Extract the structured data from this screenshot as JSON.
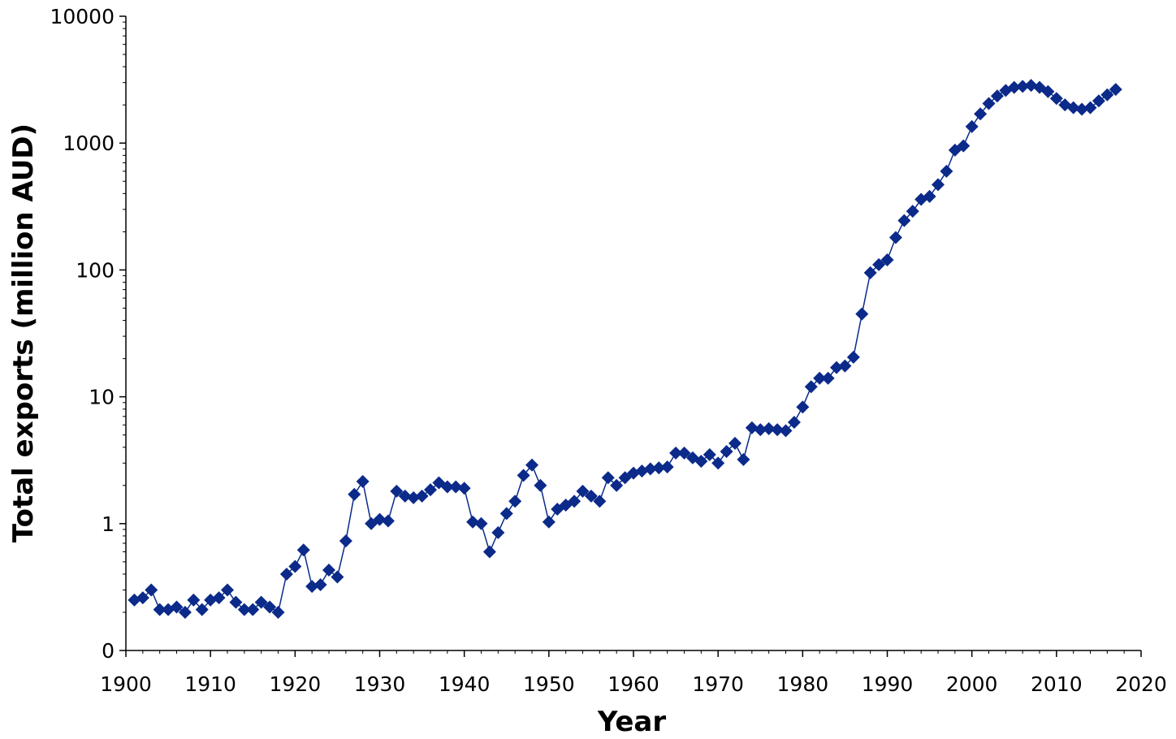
{
  "chart_data": {
    "type": "line",
    "title": "",
    "xlabel": "Year",
    "ylabel": "Total exports (million AUD)",
    "xlim": [
      1900,
      2020
    ],
    "ylim": [
      0.1,
      10000
    ],
    "yscale": "log",
    "x_ticks": [
      1900,
      1910,
      1920,
      1930,
      1940,
      1950,
      1960,
      1970,
      1980,
      1990,
      2000,
      2010,
      2020
    ],
    "x_tick_labels": [
      "1900",
      "1910",
      "1920",
      "1930",
      "1940",
      "1950",
      "1960",
      "1970",
      "1980",
      "1990",
      "2000",
      "2010",
      "2020"
    ],
    "y_ticks": [
      0.1,
      1,
      10,
      100,
      1000,
      10000
    ],
    "y_tick_labels": [
      "0",
      "1",
      "10",
      "100",
      "1000",
      "10000"
    ],
    "grid": false,
    "legend": "none",
    "series_color": "#0b2a8a",
    "marker": "diamond",
    "series": [
      {
        "x": [
          1901,
          1902,
          1903,
          1904,
          1905,
          1906,
          1907,
          1908,
          1909,
          1910,
          1911,
          1912,
          1913,
          1914,
          1915,
          1916,
          1917,
          1918,
          1919,
          1920,
          1921,
          1922,
          1923,
          1924,
          1925,
          1926,
          1927,
          1928,
          1929,
          1930,
          1931,
          1932,
          1933,
          1934,
          1935,
          1936,
          1937,
          1938,
          1939,
          1940,
          1941,
          1942,
          1943,
          1944,
          1945,
          1946,
          1947,
          1948,
          1949,
          1950,
          1951,
          1952,
          1953,
          1954,
          1955,
          1956,
          1957,
          1958,
          1959,
          1960,
          1961,
          1962,
          1963,
          1964,
          1965,
          1966,
          1967,
          1968,
          1969,
          1970,
          1971,
          1972,
          1973,
          1974,
          1975,
          1976,
          1977,
          1978,
          1979,
          1980,
          1981,
          1982,
          1983,
          1984,
          1985,
          1986,
          1987,
          1988,
          1989,
          1990,
          1991,
          1992,
          1993,
          1994,
          1995,
          1996,
          1997,
          1998,
          1999,
          2000,
          2001,
          2002,
          2003,
          2004,
          2005,
          2006,
          2007,
          2008,
          2009,
          2010,
          2011,
          2012,
          2013,
          2014,
          2015,
          2016,
          2017
        ],
        "values": [
          0.25,
          0.26,
          0.3,
          0.21,
          0.21,
          0.22,
          0.2,
          0.25,
          0.21,
          0.25,
          0.26,
          0.3,
          0.24,
          0.21,
          0.21,
          0.24,
          0.22,
          0.2,
          0.4,
          0.46,
          0.62,
          0.32,
          0.33,
          0.43,
          0.38,
          0.73,
          1.7,
          2.15,
          1.0,
          1.08,
          1.05,
          1.8,
          1.65,
          1.6,
          1.65,
          1.85,
          2.1,
          1.95,
          1.95,
          1.9,
          1.03,
          1.0,
          0.6,
          0.85,
          1.2,
          1.5,
          2.4,
          2.9,
          2.0,
          1.03,
          1.3,
          1.4,
          1.5,
          1.8,
          1.65,
          1.5,
          2.3,
          2.0,
          2.3,
          2.5,
          2.6,
          2.7,
          2.75,
          2.8,
          3.6,
          3.6,
          3.3,
          3.1,
          3.5,
          3.0,
          3.7,
          4.3,
          3.2,
          5.7,
          5.5,
          5.6,
          5.5,
          5.4,
          6.3,
          8.3,
          12.0,
          14.0,
          14.0,
          17.0,
          17.5,
          20.5,
          45,
          95,
          110,
          120,
          180,
          245,
          290,
          360,
          380,
          470,
          600,
          880,
          950,
          1350,
          1700,
          2050,
          2350,
          2600,
          2750,
          2800,
          2850,
          2750,
          2550,
          2250,
          2000,
          1900,
          1850,
          1900,
          2150,
          2400,
          2650
        ]
      }
    ]
  }
}
